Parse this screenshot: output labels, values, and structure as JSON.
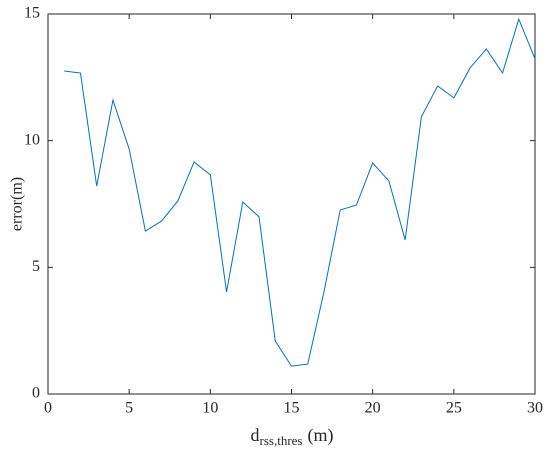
{
  "chart_data": {
    "type": "line",
    "x_label": {
      "main": "d",
      "subscript": "rss,thres",
      "suffix": "(m)"
    },
    "y_label": "error(m)",
    "x": [
      1,
      2,
      3,
      4,
      5,
      6,
      7,
      8,
      9,
      10,
      11,
      12,
      13,
      14,
      15,
      16,
      17,
      18,
      19,
      20,
      21,
      22,
      23,
      24,
      25,
      26,
      27,
      28,
      29,
      30
    ],
    "series": [
      {
        "color": "#0072bd",
        "values": [
          12.75,
          12.67,
          8.21,
          11.6,
          9.67,
          6.43,
          6.83,
          7.62,
          9.16,
          8.65,
          4.03,
          7.58,
          6.99,
          2.09,
          1.1,
          1.18,
          4.03,
          7.26,
          7.46,
          9.12,
          8.41,
          6.08,
          10.94,
          12.16,
          11.69,
          12.87,
          13.62,
          12.67,
          14.8,
          13.23
        ]
      }
    ],
    "xlim": [
      0,
      30
    ],
    "xticks": [
      0,
      5,
      10,
      15,
      20,
      25,
      30
    ],
    "ylim": [
      0,
      15
    ],
    "yticks": [
      0,
      5,
      10,
      15
    ]
  }
}
